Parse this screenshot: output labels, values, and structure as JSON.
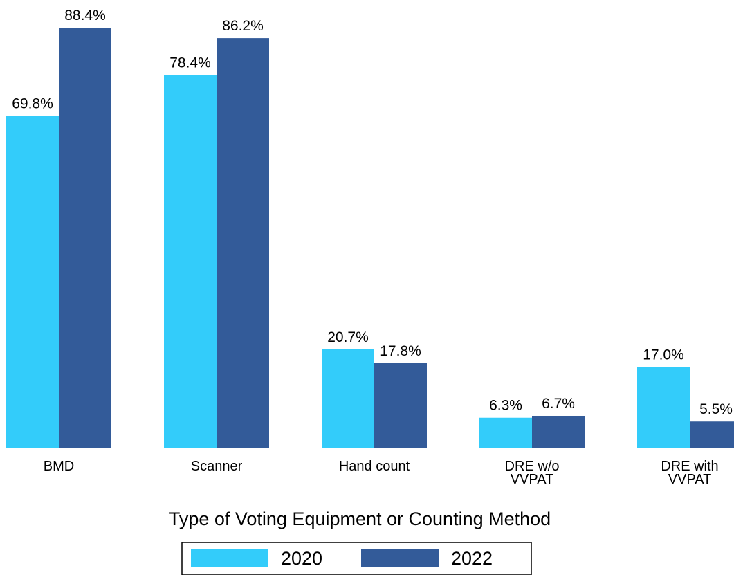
{
  "chart_data": {
    "type": "bar",
    "categories": [
      [
        "BMD"
      ],
      [
        "Scanner"
      ],
      [
        "Hand count"
      ],
      [
        "DRE w/o",
        "VVPAT"
      ],
      [
        "DRE with",
        "VVPAT"
      ]
    ],
    "series": [
      {
        "name": "2020",
        "values": [
          69.8,
          78.4,
          20.7,
          6.3,
          17.0
        ],
        "labels": [
          "69.8%",
          "78.4%",
          "20.7%",
          "6.3%",
          "17.0%"
        ],
        "color": "#33ccfa"
      },
      {
        "name": "2022",
        "values": [
          88.4,
          86.2,
          17.8,
          6.7,
          5.5
        ],
        "labels": [
          "88.4%",
          "86.2%",
          "17.8%",
          "6.7%",
          "5.5%"
        ],
        "color": "#335b99"
      }
    ],
    "xlabel": "Type of Voting Equipment or Counting Method",
    "ylabel": "",
    "ylim": [
      0,
      88.4
    ],
    "grid": false,
    "legend": "bottom-center"
  }
}
